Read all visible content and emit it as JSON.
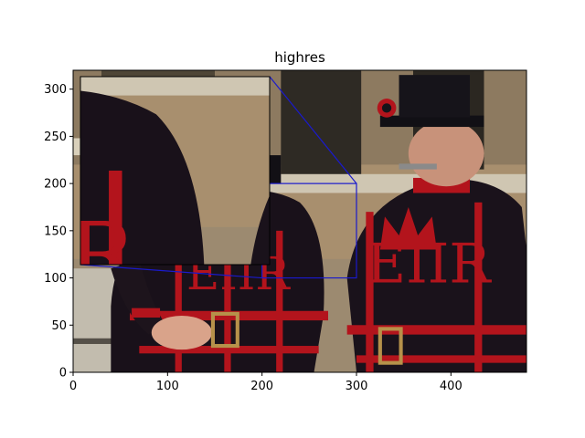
{
  "chart_data": {
    "type": "image",
    "title": "highres",
    "xlabel": "",
    "ylabel": "",
    "xlim": [
      0,
      480
    ],
    "ylim": [
      0,
      320
    ],
    "xticks": [
      0,
      100,
      200,
      300,
      400
    ],
    "yticks": [
      0,
      50,
      100,
      150,
      200,
      250,
      300
    ],
    "inset": {
      "xlim": [
        200,
        300
      ],
      "ylim": [
        100,
        200
      ],
      "indicator_color": "#1a1acc"
    }
  },
  "colors": {
    "axis": "#000000",
    "indicator": "#1a1acc"
  }
}
